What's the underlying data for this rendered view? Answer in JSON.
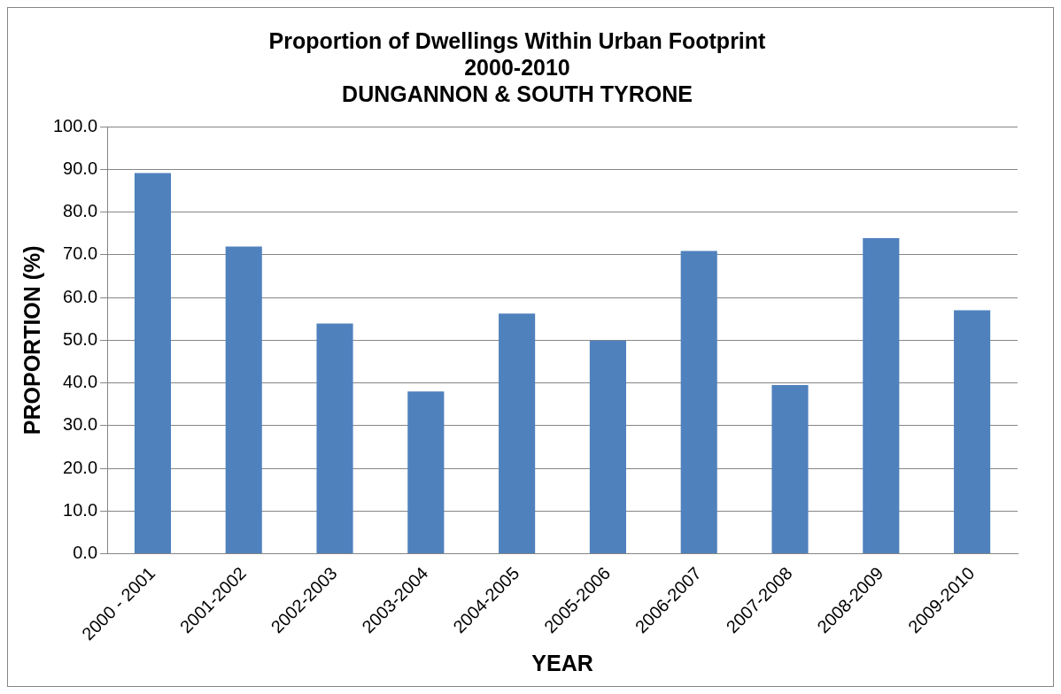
{
  "chart_data": {
    "type": "bar",
    "title": "Proportion of Dwellings Within Urban Footprint\n2000-2010\nDUNGANNON & SOUTH TYRONE",
    "xlabel": "YEAR",
    "ylabel": "PROPORTION (%)",
    "categories": [
      "2000 - 2001",
      "2001-2002",
      "2002-2003",
      "2003-2004",
      "2004-2005",
      "2005-2006",
      "2006-2007",
      "2007-2008",
      "2008-2009",
      "2009-2010"
    ],
    "values": [
      89.1,
      71.9,
      53.9,
      38.0,
      56.2,
      49.9,
      70.9,
      39.5,
      73.9,
      57.0
    ],
    "color": "#4f81bd",
    "ylim": [
      0,
      100
    ],
    "yticks": [
      {
        "value": 0,
        "label": "0.0"
      },
      {
        "value": 10,
        "label": "10.0"
      },
      {
        "value": 20,
        "label": "20.0"
      },
      {
        "value": 30,
        "label": "30.0"
      },
      {
        "value": 40,
        "label": "40.0"
      },
      {
        "value": 50,
        "label": "50.0"
      },
      {
        "value": 60,
        "label": "60.0"
      },
      {
        "value": 70,
        "label": "70.0"
      },
      {
        "value": 80,
        "label": "80.0"
      },
      {
        "value": 90,
        "label": "90.0"
      },
      {
        "value": 100,
        "label": "100.0"
      }
    ],
    "grid": "y"
  }
}
